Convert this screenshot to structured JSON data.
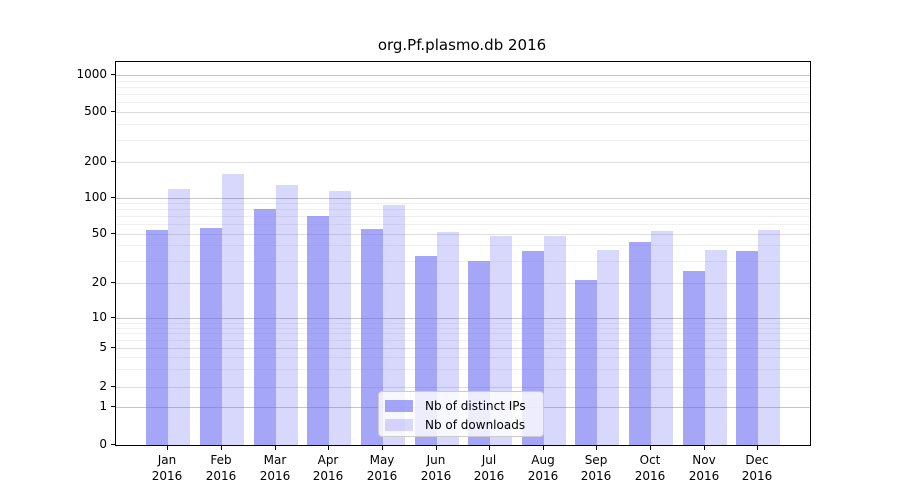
{
  "title": "org.Pf.plasmo.db 2016",
  "colors": {
    "bar_distinct_ips": "rgba(106,106,243,0.6)",
    "bar_downloads": "rgba(106,106,243,0.26)",
    "grid_major": "#c6c6c6",
    "grid_mid": "#dedede",
    "grid_minor": "#efefef",
    "axis": "#000000",
    "legend_border": "#cccccc"
  },
  "y_axis": {
    "tick_values": [
      1000,
      500,
      200,
      100,
      50,
      20,
      10,
      5,
      2,
      1,
      0
    ],
    "tick_labels": [
      "1000",
      "500",
      "200",
      "100",
      "50",
      "20",
      "10",
      "5",
      "2",
      "1",
      "0"
    ]
  },
  "x_axis": {
    "months": [
      "Jan",
      "Feb",
      "Mar",
      "Apr",
      "May",
      "Jun",
      "Jul",
      "Aug",
      "Sep",
      "Oct",
      "Nov",
      "Dec"
    ],
    "year": "2016"
  },
  "legend": {
    "items": [
      {
        "label": "Nb of distinct IPs",
        "series_key": "bar_distinct_ips"
      },
      {
        "label": "Nb of downloads",
        "series_key": "bar_downloads"
      }
    ]
  },
  "chart_data": {
    "type": "bar",
    "title": "org.Pf.plasmo.db 2016",
    "categories": [
      "Jan 2016",
      "Feb 2016",
      "Mar 2016",
      "Apr 2016",
      "May 2016",
      "Jun 2016",
      "Jul 2016",
      "Aug 2016",
      "Sep 2016",
      "Oct 2016",
      "Nov 2016",
      "Dec 2016"
    ],
    "series": [
      {
        "name": "Nb of distinct IPs",
        "values": [
          54,
          56,
          80,
          70,
          55,
          33,
          30,
          36,
          21,
          43,
          25,
          36
        ]
      },
      {
        "name": "Nb of downloads",
        "values": [
          118,
          158,
          129,
          114,
          87,
          51,
          48,
          48,
          37,
          52,
          37,
          54
        ]
      }
    ],
    "xlabel": "",
    "ylabel": "",
    "yscale": "symlog",
    "ylim": [
      0,
      1300
    ],
    "y_ticks": [
      0,
      1,
      2,
      5,
      10,
      20,
      50,
      100,
      200,
      500,
      1000
    ],
    "grid": "horizontal, major and minor log gridlines",
    "legend_position": "lower center inside plot"
  }
}
